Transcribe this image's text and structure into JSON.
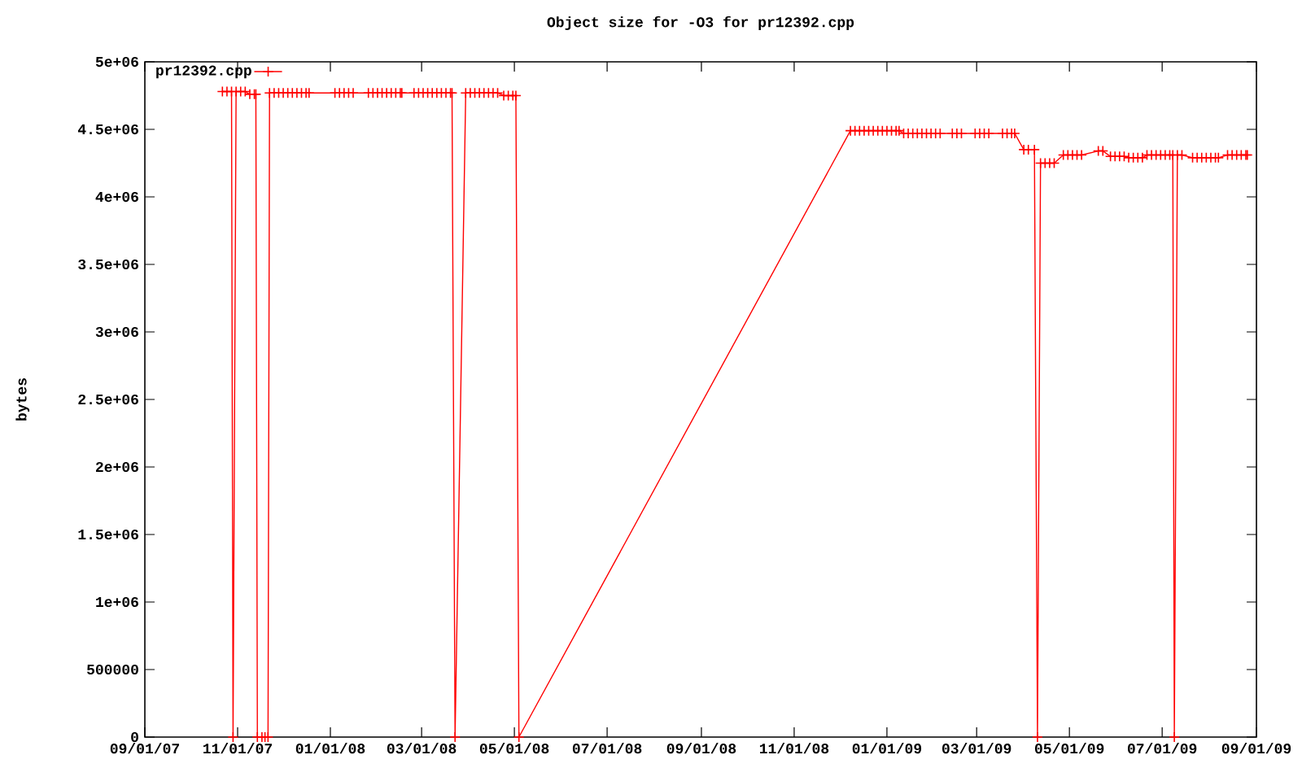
{
  "chart_data": {
    "type": "line",
    "title": "Object size for -O3 for pr12392.cpp",
    "ylabel": "bytes",
    "legend": "top left",
    "marker": "cross",
    "line_style": "solid",
    "xlim": [
      "2007-09-01",
      "2009-09-01"
    ],
    "xticks": [
      {
        "value": "2007-09-01",
        "label": "09/01/07"
      },
      {
        "value": "2007-11-01",
        "label": "11/01/07"
      },
      {
        "value": "2008-01-01",
        "label": "01/01/08"
      },
      {
        "value": "2008-03-01",
        "label": "03/01/08"
      },
      {
        "value": "2008-05-01",
        "label": "05/01/08"
      },
      {
        "value": "2008-07-01",
        "label": "07/01/08"
      },
      {
        "value": "2008-09-01",
        "label": "09/01/08"
      },
      {
        "value": "2008-11-01",
        "label": "11/01/08"
      },
      {
        "value": "2009-01-01",
        "label": "01/01/09"
      },
      {
        "value": "2009-03-01",
        "label": "03/01/09"
      },
      {
        "value": "2009-05-01",
        "label": "05/01/09"
      },
      {
        "value": "2009-07-01",
        "label": "07/01/09"
      },
      {
        "value": "2009-09-01",
        "label": "09/01/09"
      }
    ],
    "ylim": [
      0,
      5000000
    ],
    "yticks": [
      0,
      500000,
      {
        "value": 1000000,
        "label": "1e+06"
      },
      {
        "value": 1500000,
        "label": "1.5e+06"
      },
      {
        "value": 2000000,
        "label": "2e+06"
      },
      {
        "value": 2500000,
        "label": "2.5e+06"
      },
      {
        "value": 3000000,
        "label": "3e+06"
      },
      {
        "value": 3500000,
        "label": "3.5e+06"
      },
      {
        "value": 4000000,
        "label": "4e+06"
      },
      {
        "value": 4500000,
        "label": "4.5e+06"
      },
      {
        "value": 5000000,
        "label": "5e+06"
      }
    ],
    "x": [
      "2007-10-22",
      "2007-10-25",
      "2007-10-28",
      "2007-10-29",
      "2007-10-31",
      "2007-11-03",
      "2007-11-06",
      "2007-11-09",
      "2007-11-12",
      "2007-11-13",
      "2007-11-14",
      "2007-11-17",
      "2007-11-19",
      "2007-11-21",
      "2007-11-22",
      "2007-11-25",
      "2007-11-28",
      "2007-12-01",
      "2007-12-04",
      "2007-12-07",
      "2007-12-10",
      "2007-12-13",
      "2007-12-16",
      "2007-12-18",
      "2008-01-04",
      "2008-01-07",
      "2008-01-10",
      "2008-01-13",
      "2008-01-16",
      "2008-01-26",
      "2008-01-29",
      "2008-02-01",
      "2008-02-04",
      "2008-02-07",
      "2008-02-10",
      "2008-02-13",
      "2008-02-16",
      "2008-02-17",
      "2008-02-25",
      "2008-02-28",
      "2008-03-02",
      "2008-03-05",
      "2008-03-08",
      "2008-03-11",
      "2008-03-14",
      "2008-03-17",
      "2008-03-20",
      "2008-03-21",
      "2008-03-23",
      "2008-03-30",
      "2008-04-02",
      "2008-04-05",
      "2008-04-08",
      "2008-04-11",
      "2008-04-14",
      "2008-04-17",
      "2008-04-20",
      "2008-04-24",
      "2008-04-27",
      "2008-04-30",
      "2008-05-02",
      "2008-05-04",
      "2008-12-08",
      "2008-12-11",
      "2008-12-14",
      "2008-12-17",
      "2008-12-20",
      "2008-12-23",
      "2008-12-26",
      "2008-12-29",
      "2009-01-01",
      "2009-01-04",
      "2009-01-07",
      "2009-01-09",
      "2009-01-12",
      "2009-01-15",
      "2009-01-18",
      "2009-01-21",
      "2009-01-24",
      "2009-01-27",
      "2009-01-30",
      "2009-02-02",
      "2009-02-05",
      "2009-02-13",
      "2009-02-16",
      "2009-02-19",
      "2009-02-28",
      "2009-03-03",
      "2009-03-06",
      "2009-03-09",
      "2009-03-18",
      "2009-03-21",
      "2009-03-24",
      "2009-03-26",
      "2009-04-01",
      "2009-04-04",
      "2009-04-08",
      "2009-04-10",
      "2009-04-12",
      "2009-04-15",
      "2009-04-18",
      "2009-04-21",
      "2009-04-27",
      "2009-04-30",
      "2009-05-03",
      "2009-05-06",
      "2009-05-09",
      "2009-05-20",
      "2009-05-23",
      "2009-05-28",
      "2009-05-31",
      "2009-06-03",
      "2009-06-06",
      "2009-06-09",
      "2009-06-12",
      "2009-06-15",
      "2009-06-18",
      "2009-06-21",
      "2009-06-24",
      "2009-06-27",
      "2009-06-30",
      "2009-07-03",
      "2009-07-06",
      "2009-07-08",
      "2009-07-09",
      "2009-07-11",
      "2009-07-14",
      "2009-07-21",
      "2009-07-24",
      "2009-07-27",
      "2009-07-30",
      "2009-08-02",
      "2009-08-05",
      "2009-08-07",
      "2009-08-13",
      "2009-08-16",
      "2009-08-19",
      "2009-08-22",
      "2009-08-25",
      "2009-08-26"
    ],
    "series": [
      {
        "name": "pr12392.cpp",
        "color": "#ff0000",
        "values": [
          4780000,
          4780000,
          4780000,
          0,
          4780000,
          4780000,
          4780000,
          4760000,
          4760000,
          4760000,
          0,
          0,
          0,
          0,
          4770000,
          4770000,
          4770000,
          4770000,
          4770000,
          4770000,
          4770000,
          4770000,
          4770000,
          4770000,
          4770000,
          4770000,
          4770000,
          4770000,
          4770000,
          4770000,
          4770000,
          4770000,
          4770000,
          4770000,
          4770000,
          4770000,
          4770000,
          4770000,
          4770000,
          4770000,
          4770000,
          4770000,
          4770000,
          4770000,
          4770000,
          4770000,
          4770000,
          4770000,
          0,
          4770000,
          4770000,
          4770000,
          4770000,
          4770000,
          4770000,
          4770000,
          4770000,
          4750000,
          4750000,
          4750000,
          4750000,
          0,
          4490000,
          4490000,
          4490000,
          4490000,
          4490000,
          4490000,
          4490000,
          4490000,
          4490000,
          4490000,
          4490000,
          4490000,
          4470000,
          4470000,
          4470000,
          4470000,
          4470000,
          4470000,
          4470000,
          4470000,
          4470000,
          4470000,
          4470000,
          4470000,
          4470000,
          4470000,
          4470000,
          4470000,
          4470000,
          4470000,
          4470000,
          4470000,
          4350000,
          4350000,
          4350000,
          0,
          4250000,
          4250000,
          4250000,
          4250000,
          4310000,
          4310000,
          4310000,
          4310000,
          4310000,
          4340000,
          4340000,
          4300000,
          4300000,
          4300000,
          4300000,
          4290000,
          4290000,
          4290000,
          4290000,
          4310000,
          4310000,
          4310000,
          4310000,
          4310000,
          4310000,
          4310000,
          0,
          4310000,
          4310000,
          4290000,
          4290000,
          4290000,
          4290000,
          4290000,
          4290000,
          4290000,
          4310000,
          4310000,
          4310000,
          4310000,
          4310000,
          4310000
        ]
      }
    ]
  }
}
